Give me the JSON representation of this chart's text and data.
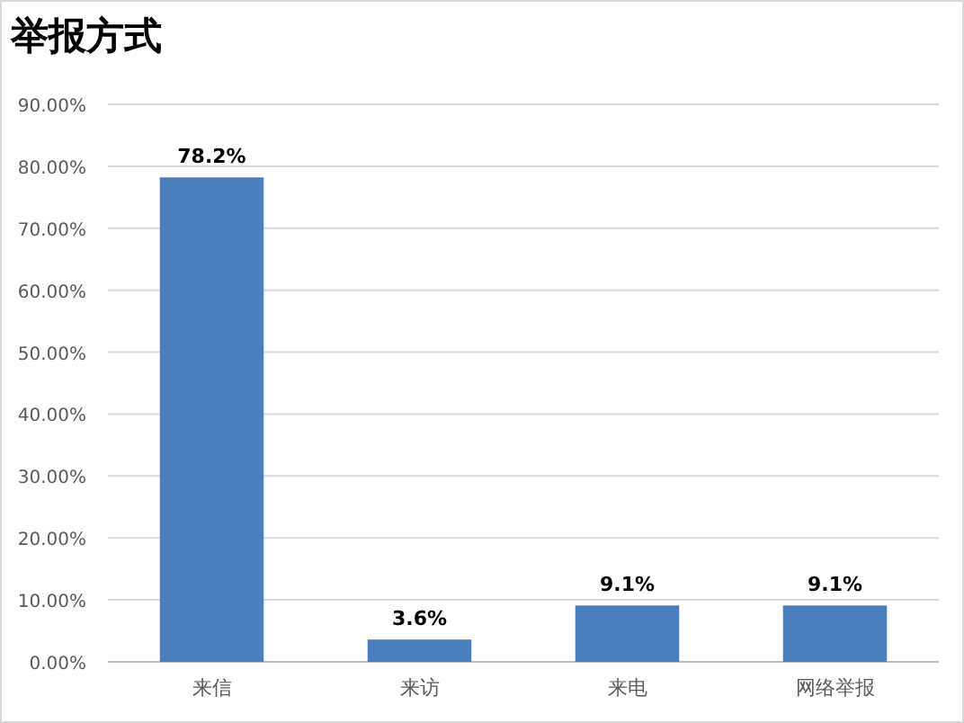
{
  "chart_data": {
    "type": "bar",
    "title": "举报方式",
    "categories": [
      "来信",
      "来访",
      "来电",
      "网络举报"
    ],
    "values": [
      78.2,
      3.6,
      9.1,
      9.1
    ],
    "value_labels": [
      "78.2%",
      "3.6%",
      "9.1%",
      "9.1%"
    ],
    "color": "#4a7ebf",
    "ylim": [
      0,
      90
    ],
    "yticks": [
      {
        "value": 0,
        "label": "0.00%"
      },
      {
        "value": 10,
        "label": "10.00%"
      },
      {
        "value": 20,
        "label": "20.00%"
      },
      {
        "value": 30,
        "label": "30.00%"
      },
      {
        "value": 40,
        "label": "40.00%"
      },
      {
        "value": 50,
        "label": "50.00%"
      },
      {
        "value": 60,
        "label": "60.00%"
      },
      {
        "value": 70,
        "label": "70.00%"
      },
      {
        "value": 80,
        "label": "80.00%"
      },
      {
        "value": 90,
        "label": "90.00%"
      }
    ],
    "grid": "y"
  }
}
